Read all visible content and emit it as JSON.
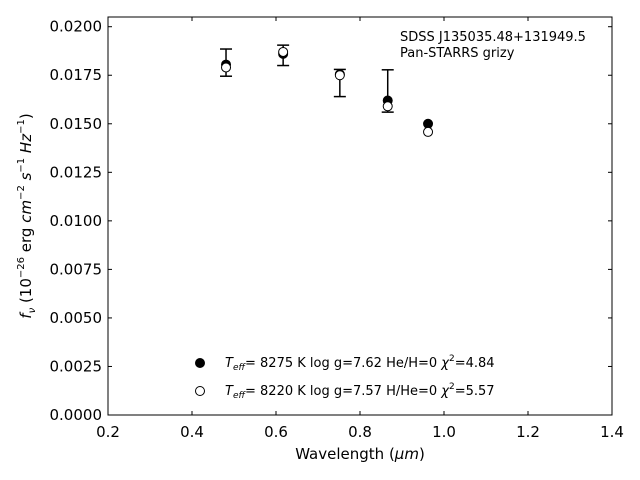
{
  "chart_data": {
    "type": "scatter",
    "xlabel_prefix": "Wavelength (",
    "xlabel_unit": "μm",
    "xlabel_suffix": ")",
    "ylabel_parts": {
      "f": "f",
      "nu": "ν",
      "open": " (10",
      "exp1": "−26",
      "erg": " erg ",
      "cm": "cm",
      "exp2": "−2",
      "s": " s",
      "exp3": "−1",
      "hz": " Hz",
      "exp4": "−1",
      "close": ")"
    },
    "xlim": [
      0.2,
      1.4
    ],
    "ylim": [
      0.0,
      0.0205
    ],
    "x_ticks": [
      0.2,
      0.4,
      0.6,
      0.8,
      1.0,
      1.2,
      1.4
    ],
    "x_tick_labels": [
      "0.2",
      "0.4",
      "0.6",
      "0.8",
      "1.0",
      "1.2",
      "1.4"
    ],
    "y_ticks": [
      0.0,
      0.0025,
      0.005,
      0.0075,
      0.01,
      0.0125,
      0.015,
      0.0175,
      0.02
    ],
    "y_tick_labels": [
      "0.0000",
      "0.0025",
      "0.0050",
      "0.0075",
      "0.0100",
      "0.0125",
      "0.0150",
      "0.0175",
      "0.0200"
    ],
    "annotation_lines": [
      "SDSS J135035.48+131949.5",
      "Pan-STARRS grizy"
    ],
    "observed": {
      "x": [
        0.481,
        0.617,
        0.752,
        0.866,
        0.962
      ],
      "y": [
        0.01795,
        0.01853,
        0.01755,
        0.01595,
        null
      ],
      "yerr_low": [
        0.01745,
        0.018,
        0.0164,
        0.0156,
        null
      ],
      "yerr_high": [
        0.01885,
        0.01905,
        0.0178,
        0.01778,
        null
      ]
    },
    "series": [
      {
        "marker": "filled-circle",
        "x": [
          0.481,
          0.617,
          0.752,
          0.866,
          0.962
        ],
        "y": [
          0.01805,
          0.0186,
          0.01755,
          0.0162,
          0.015
        ],
        "label": {
          "t": "T",
          "sub": "eff",
          "temp": "=  8275 K  log g=7.62  He/H=0  ",
          "chi": "χ",
          "sup": "2",
          "chi_val": "=4.84"
        }
      },
      {
        "marker": "open-circle",
        "x": [
          0.481,
          0.617,
          0.752,
          0.866,
          0.962
        ],
        "y": [
          0.0179,
          0.0187,
          0.0175,
          0.0159,
          0.01458
        ],
        "label": {
          "t": "T",
          "sub": "eff",
          "temp": "=  8220 K  log g=7.57  H/He=0  ",
          "chi": "χ",
          "sup": "2",
          "chi_val": "=5.57"
        }
      }
    ]
  }
}
